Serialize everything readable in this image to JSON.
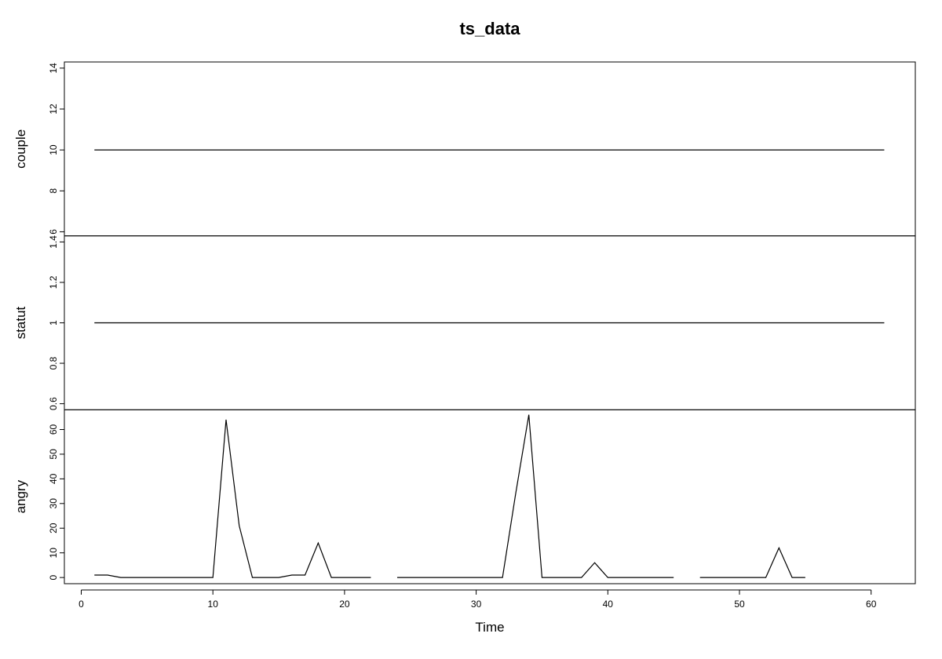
{
  "chart_data": {
    "type": "line",
    "title": "ts_data",
    "xlabel": "Time",
    "xlim": [
      0,
      61
    ],
    "xticks": [
      0,
      10,
      20,
      30,
      40,
      50,
      60
    ],
    "x": [
      1,
      2,
      3,
      4,
      5,
      6,
      7,
      8,
      9,
      10,
      11,
      12,
      13,
      14,
      15,
      16,
      17,
      18,
      19,
      20,
      21,
      22,
      23,
      24,
      25,
      26,
      27,
      28,
      29,
      30,
      31,
      32,
      33,
      34,
      35,
      36,
      37,
      38,
      39,
      40,
      41,
      42,
      43,
      44,
      45,
      46,
      47,
      48,
      49,
      50,
      51,
      52,
      53,
      54,
      55,
      56,
      57,
      58,
      59,
      60,
      61
    ],
    "panels": [
      {
        "name": "couple",
        "ylim": [
          5.8,
          14.3
        ],
        "yticks": [
          6,
          8,
          10,
          12,
          14
        ],
        "values": [
          10,
          10,
          10,
          10,
          10,
          10,
          10,
          10,
          10,
          10,
          10,
          10,
          10,
          10,
          10,
          10,
          10,
          10,
          10,
          10,
          10,
          10,
          10,
          10,
          10,
          10,
          10,
          10,
          10,
          10,
          10,
          10,
          10,
          10,
          10,
          10,
          10,
          10,
          10,
          10,
          10,
          10,
          10,
          10,
          10,
          10,
          10,
          10,
          10,
          10,
          10,
          10,
          10,
          10,
          10,
          10,
          10,
          10,
          10,
          10,
          10
        ]
      },
      {
        "name": "statut",
        "ylim": [
          0.57,
          1.43
        ],
        "yticks": [
          0.6,
          0.8,
          1.0,
          1.2,
          1.4
        ],
        "values": [
          1,
          1,
          1,
          1,
          1,
          1,
          1,
          1,
          1,
          1,
          1,
          1,
          1,
          1,
          1,
          1,
          1,
          1,
          1,
          1,
          1,
          1,
          1,
          1,
          1,
          1,
          1,
          1,
          1,
          1,
          1,
          1,
          1,
          1,
          1,
          1,
          1,
          1,
          1,
          1,
          1,
          1,
          1,
          1,
          1,
          1,
          1,
          1,
          1,
          1,
          1,
          1,
          1,
          1,
          1,
          1,
          1,
          1,
          1,
          1,
          1
        ]
      },
      {
        "name": "angry",
        "ylim": [
          -2.5,
          68
        ],
        "yticks": [
          0,
          10,
          20,
          30,
          40,
          50,
          60
        ],
        "values": [
          1,
          1,
          0,
          0,
          0,
          0,
          0,
          0,
          0,
          0,
          64,
          21,
          0,
          0,
          0,
          1,
          1,
          14,
          0,
          0,
          0,
          0,
          null,
          0,
          0,
          0,
          0,
          0,
          0,
          0,
          0,
          0,
          34,
          66,
          0,
          0,
          0,
          0,
          6,
          0,
          0,
          0,
          0,
          0,
          0,
          null,
          0,
          0,
          0,
          0,
          0,
          0,
          12,
          0,
          0,
          null,
          null,
          null,
          null,
          null,
          null
        ]
      }
    ],
    "grid": false,
    "legend": "none"
  }
}
